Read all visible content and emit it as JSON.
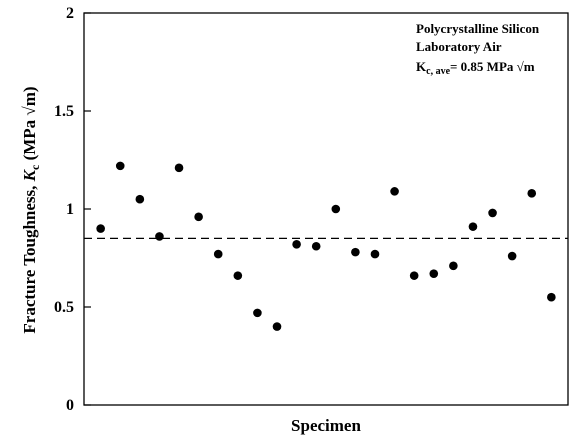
{
  "chart_data": {
    "type": "scatter",
    "title": "",
    "xlabel": "Specimen",
    "ylabel": {
      "prefix": "Fracture Toughness, ",
      "symbol": "K",
      "subscript": "c",
      "units": " (MPa √m)"
    },
    "ylim": [
      0,
      2
    ],
    "yticks": [
      "0",
      "0.5",
      "1",
      "1.5",
      "2"
    ],
    "x_ticks_labeled": false,
    "grid": false,
    "legend": "none",
    "point_color": "#000000",
    "reference_line": {
      "style": "dashed",
      "value": 0.85
    },
    "annotations": {
      "line1": "Polycrystalline Silicon",
      "line2": "Laboratory Air",
      "line3_symbol": "K",
      "line3_subscript": "c, ave",
      "line3_value": "= 0.85 MPa √m"
    },
    "series": [
      {
        "x": [
          1,
          2,
          3,
          4,
          5,
          6,
          7,
          8,
          9,
          10,
          11,
          12,
          13,
          14,
          15,
          16,
          17,
          18,
          19,
          20,
          21,
          22,
          23,
          24
        ],
        "values": [
          0.9,
          1.22,
          1.05,
          0.86,
          1.21,
          0.96,
          0.77,
          0.66,
          0.47,
          0.4,
          0.82,
          0.81,
          1.0,
          0.78,
          0.77,
          1.09,
          0.66,
          0.67,
          0.71,
          0.91,
          0.98,
          0.76,
          1.08,
          0.55
        ]
      }
    ]
  }
}
